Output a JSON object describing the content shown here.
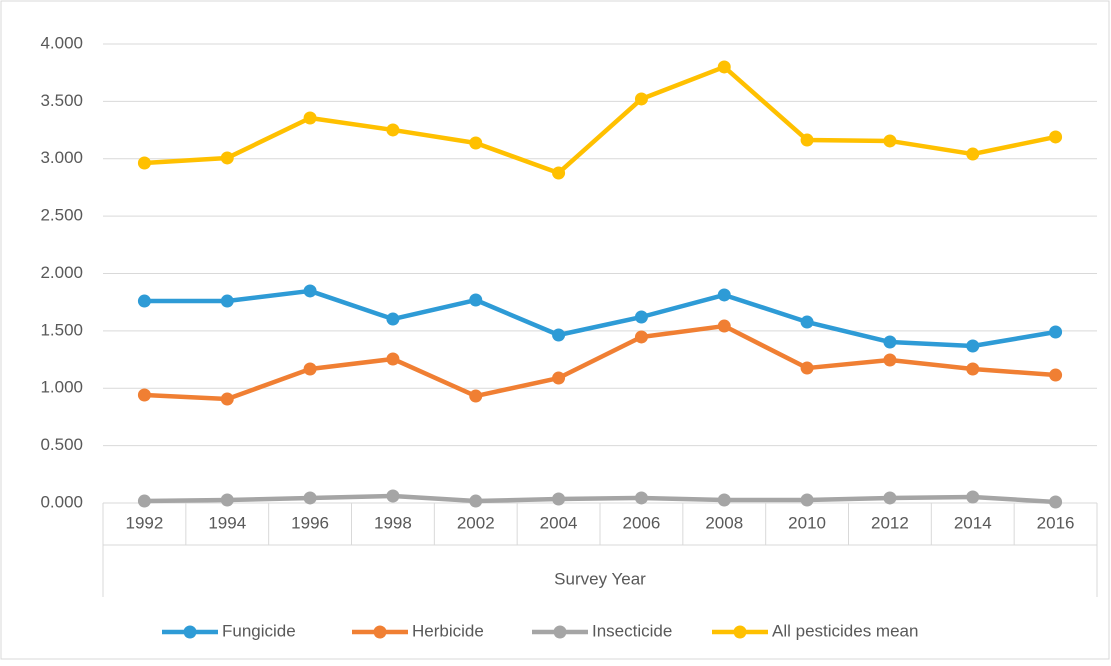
{
  "chart_data": {
    "type": "line",
    "x_label": "Survey Year",
    "categories": [
      "1992",
      "1994",
      "1996",
      "1998",
      "2002",
      "2004",
      "2006",
      "2008",
      "2010",
      "2012",
      "2014",
      "2016"
    ],
    "series": [
      {
        "name": "Fungicide",
        "color": "#2e9bd6",
        "values": [
          1.76,
          1.76,
          1.848,
          1.603,
          1.769,
          1.464,
          1.621,
          1.813,
          1.577,
          1.403,
          1.368,
          1.49
        ]
      },
      {
        "name": "Herbicide",
        "color": "#f07f33",
        "values": [
          0.941,
          0.906,
          1.168,
          1.255,
          0.932,
          1.089,
          1.447,
          1.542,
          1.176,
          1.246,
          1.168,
          1.115
        ]
      },
      {
        "name": "Insecticide",
        "color": "#a5a5a5",
        "values": [
          0.017,
          0.026,
          0.044,
          0.061,
          0.017,
          0.035,
          0.044,
          0.026,
          0.026,
          0.044,
          0.052,
          0.009
        ]
      },
      {
        "name": "All pesticides mean",
        "color": "#ffc000",
        "values": [
          2.963,
          3.007,
          3.355,
          3.251,
          3.137,
          2.876,
          3.521,
          3.8,
          3.163,
          3.155,
          3.041,
          3.19
        ]
      }
    ],
    "ylim": [
      0,
      4
    ],
    "yticks": [
      {
        "value": 0,
        "label": "0.000"
      },
      {
        "value": 0.5,
        "label": "0.500"
      },
      {
        "value": 1,
        "label": "1.000"
      },
      {
        "value": 1.5,
        "label": "1.500"
      },
      {
        "value": 2,
        "label": "2.000"
      },
      {
        "value": 2.5,
        "label": "2.500"
      },
      {
        "value": 3,
        "label": "3.000"
      },
      {
        "value": 3.5,
        "label": "3.500"
      },
      {
        "value": 4,
        "label": "4.000"
      }
    ],
    "grid": true,
    "legend": "bottom"
  }
}
